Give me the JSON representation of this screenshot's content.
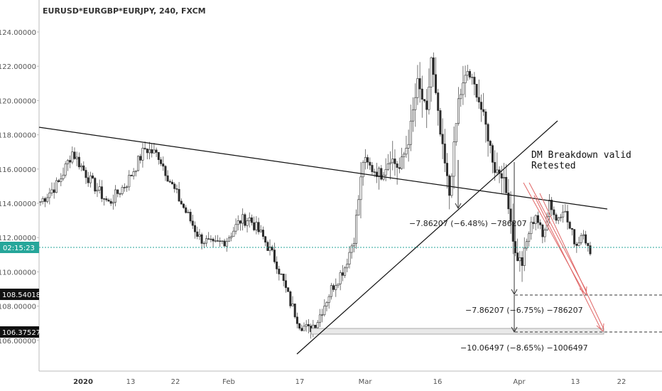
{
  "chart_data": {
    "type": "candlestick",
    "title": "EURUSD*EURGBP*EURJPY, 240, FXCM",
    "ylim": [
      104.0,
      125.0
    ],
    "y_ticks": [
      "124.00000",
      "122.00000",
      "120.00000",
      "118.00000",
      "116.00000",
      "114.00000",
      "112.00000",
      "110.00000",
      "108.00000",
      "106.00000"
    ],
    "y_tick_values": [
      124,
      122,
      120,
      118,
      116,
      114,
      112,
      110,
      108,
      106
    ],
    "x_ticks": [
      {
        "label": "2020",
        "bold": true
      },
      {
        "label": "13",
        "bold": false
      },
      {
        "label": "22",
        "bold": false
      },
      {
        "label": "Feb",
        "bold": false
      },
      {
        "label": "17",
        "bold": false
      },
      {
        "label": "Mar",
        "bold": false
      },
      {
        "label": "16",
        "bold": false
      },
      {
        "label": "Apr",
        "bold": false
      },
      {
        "label": "13",
        "bold": false
      },
      {
        "label": "22",
        "bold": false
      }
    ],
    "current_price": {
      "label": "02:15:23",
      "value": 111.4,
      "color": "#26a69a"
    },
    "price_labels": [
      {
        "label": "108.54018",
        "value": 108.54018
      },
      {
        "label": "106.37527",
        "value": 106.37527
      }
    ],
    "anchors": [
      [
        0,
        114.1
      ],
      [
        8,
        115.2
      ],
      [
        14,
        117.0
      ],
      [
        22,
        115.3
      ],
      [
        30,
        114.0
      ],
      [
        38,
        115.2
      ],
      [
        46,
        117.2
      ],
      [
        52,
        116.8
      ],
      [
        58,
        115.0
      ],
      [
        64,
        113.5
      ],
      [
        70,
        112.0
      ],
      [
        76,
        111.5
      ],
      [
        82,
        111.9
      ],
      [
        88,
        113.0
      ],
      [
        92,
        113.1
      ],
      [
        98,
        112.0
      ],
      [
        104,
        110.5
      ],
      [
        110,
        108.2
      ],
      [
        114,
        107.0
      ],
      [
        118,
        106.6
      ],
      [
        122,
        107.2
      ],
      [
        128,
        109.0
      ],
      [
        134,
        110.3
      ],
      [
        138,
        112.0
      ],
      [
        142,
        116.5
      ],
      [
        146,
        116.0
      ],
      [
        150,
        115.7
      ],
      [
        154,
        116.7
      ],
      [
        158,
        116.0
      ],
      [
        162,
        117.7
      ],
      [
        166,
        121.0
      ],
      [
        170,
        119.2
      ],
      [
        172,
        122.5
      ],
      [
        176,
        118.0
      ],
      [
        180,
        114.5
      ],
      [
        184,
        120.0
      ],
      [
        188,
        121.7
      ],
      [
        192,
        120.5
      ],
      [
        196,
        118.5
      ],
      [
        200,
        116.0
      ],
      [
        203,
        115.8
      ],
      [
        206,
        114.0
      ],
      [
        209,
        111.0
      ],
      [
        212,
        110.5
      ],
      [
        215,
        112.3
      ],
      [
        218,
        113.4
      ],
      [
        221,
        112.0
      ],
      [
        224,
        114.2
      ],
      [
        227,
        113.0
      ],
      [
        230,
        113.8
      ],
      [
        233,
        112.5
      ],
      [
        236,
        111.6
      ],
      [
        239,
        112.5
      ],
      [
        242,
        110.8
      ]
    ],
    "annotations": [
      {
        "text": "DM Breakdown valid"
      },
      {
        "text": "Retested"
      }
    ],
    "measures": [
      {
        "label": "−7.86207 (−6.48%) −786207"
      },
      {
        "label": "−7.86207 (−6.75%) −786207"
      },
      {
        "label": "−10.06497 (−8.65%) −1006497"
      }
    ],
    "colors": {
      "up": "#2b2b2b",
      "down": "#2b2b2b",
      "up_fill": "#ffffff",
      "wick": "#555555",
      "trend": "#111111",
      "arrow": "#e06666"
    }
  }
}
